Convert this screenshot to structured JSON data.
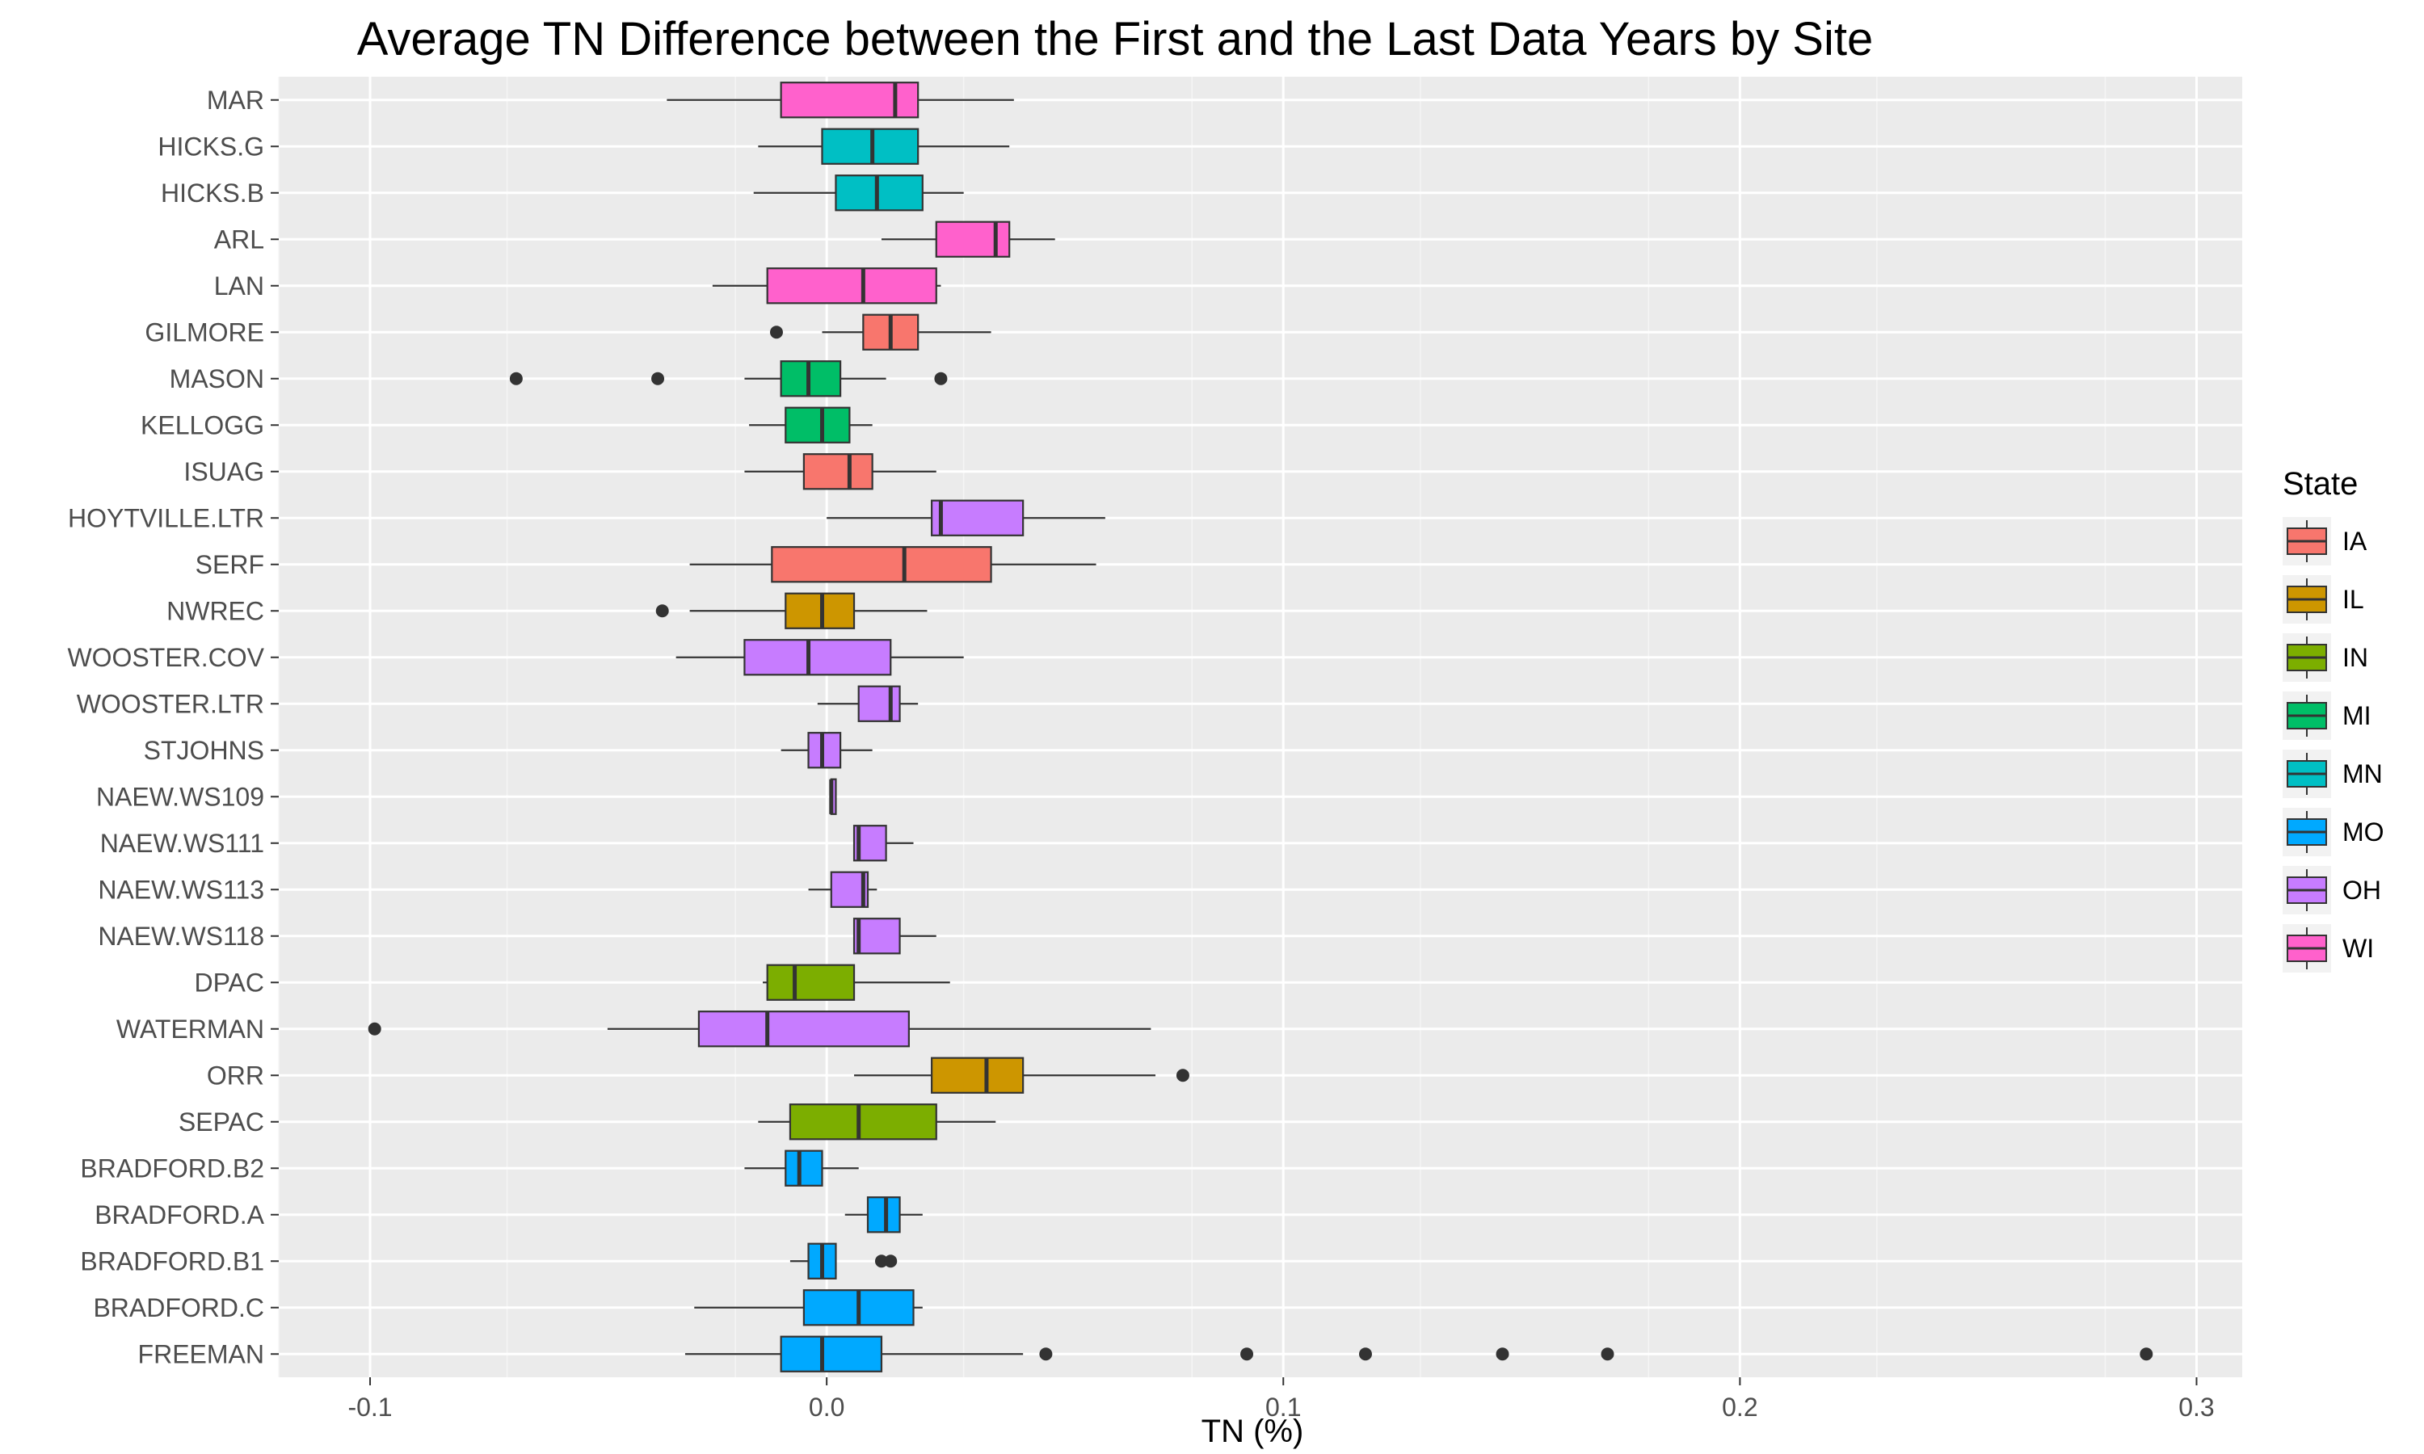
{
  "chart_data": {
    "type": "boxplot",
    "orientation": "horizontal",
    "title": "Average TN Difference between the First and the Last Data Years by Site",
    "xlabel": "TN (%)",
    "ylabel": "",
    "xlim": [
      -0.12,
      0.31
    ],
    "xticks": [
      -0.1,
      0.0,
      0.1,
      0.2,
      0.3
    ],
    "xtick_labels": [
      "-0.1",
      "0.0",
      "0.1",
      "0.2",
      "0.3"
    ],
    "grid": true,
    "legend": {
      "title": "State",
      "placement": "right",
      "entries": [
        {
          "label": "IA",
          "color": "#F8766D"
        },
        {
          "label": "IL",
          "color": "#CD9600"
        },
        {
          "label": "IN",
          "color": "#7CAE00"
        },
        {
          "label": "MI",
          "color": "#00BE67"
        },
        {
          "label": "MN",
          "color": "#00BFC4"
        },
        {
          "label": "MO",
          "color": "#00A9FF"
        },
        {
          "label": "OH",
          "color": "#C77CFF"
        },
        {
          "label": "WI",
          "color": "#FF61CC"
        }
      ]
    },
    "boxes": [
      {
        "site": "MAR",
        "state": "WI",
        "whisker_low": -0.035,
        "q1": -0.01,
        "median": 0.015,
        "q3": 0.02,
        "whisker_high": 0.041,
        "outliers": []
      },
      {
        "site": "HICKS.G",
        "state": "MN",
        "whisker_low": -0.015,
        "q1": -0.001,
        "median": 0.01,
        "q3": 0.02,
        "whisker_high": 0.04,
        "outliers": []
      },
      {
        "site": "HICKS.B",
        "state": "MN",
        "whisker_low": -0.016,
        "q1": 0.002,
        "median": 0.011,
        "q3": 0.021,
        "whisker_high": 0.03,
        "outliers": []
      },
      {
        "site": "ARL",
        "state": "WI",
        "whisker_low": 0.012,
        "q1": 0.024,
        "median": 0.037,
        "q3": 0.04,
        "whisker_high": 0.05,
        "outliers": []
      },
      {
        "site": "LAN",
        "state": "WI",
        "whisker_low": -0.025,
        "q1": -0.013,
        "median": 0.008,
        "q3": 0.024,
        "whisker_high": 0.025,
        "outliers": []
      },
      {
        "site": "GILMORE",
        "state": "IA",
        "whisker_low": -0.001,
        "q1": 0.008,
        "median": 0.014,
        "q3": 0.02,
        "whisker_high": 0.036,
        "outliers": [
          -0.011
        ]
      },
      {
        "site": "MASON",
        "state": "MI",
        "whisker_low": -0.018,
        "q1": -0.01,
        "median": -0.004,
        "q3": 0.003,
        "whisker_high": 0.013,
        "outliers": [
          -0.068,
          -0.037,
          0.025
        ]
      },
      {
        "site": "KELLOGG",
        "state": "MI",
        "whisker_low": -0.017,
        "q1": -0.009,
        "median": -0.001,
        "q3": 0.005,
        "whisker_high": 0.01,
        "outliers": []
      },
      {
        "site": "ISUAG",
        "state": "IA",
        "whisker_low": -0.018,
        "q1": -0.005,
        "median": 0.005,
        "q3": 0.01,
        "whisker_high": 0.024,
        "outliers": []
      },
      {
        "site": "HOYTVILLE.LTR",
        "state": "OH",
        "whisker_low": 0.0,
        "q1": 0.023,
        "median": 0.025,
        "q3": 0.043,
        "whisker_high": 0.061,
        "outliers": []
      },
      {
        "site": "SERF",
        "state": "IA",
        "whisker_low": -0.03,
        "q1": -0.012,
        "median": 0.017,
        "q3": 0.036,
        "whisker_high": 0.059,
        "outliers": []
      },
      {
        "site": "NWREC",
        "state": "IL",
        "whisker_low": -0.03,
        "q1": -0.009,
        "median": -0.001,
        "q3": 0.006,
        "whisker_high": 0.022,
        "outliers": [
          -0.036
        ]
      },
      {
        "site": "WOOSTER.COV",
        "state": "OH",
        "whisker_low": -0.033,
        "q1": -0.018,
        "median": -0.004,
        "q3": 0.014,
        "whisker_high": 0.03,
        "outliers": []
      },
      {
        "site": "WOOSTER.LTR",
        "state": "OH",
        "whisker_low": -0.002,
        "q1": 0.007,
        "median": 0.014,
        "q3": 0.016,
        "whisker_high": 0.02,
        "outliers": []
      },
      {
        "site": "STJOHNS",
        "state": "OH",
        "whisker_low": -0.01,
        "q1": -0.004,
        "median": -0.001,
        "q3": 0.003,
        "whisker_high": 0.01,
        "outliers": []
      },
      {
        "site": "NAEW.WS109",
        "state": "OH",
        "whisker_low": 0.001,
        "q1": 0.001,
        "median": 0.001,
        "q3": 0.002,
        "whisker_high": 0.002,
        "outliers": []
      },
      {
        "site": "NAEW.WS111",
        "state": "OH",
        "whisker_low": 0.006,
        "q1": 0.006,
        "median": 0.007,
        "q3": 0.013,
        "whisker_high": 0.019,
        "outliers": []
      },
      {
        "site": "NAEW.WS113",
        "state": "OH",
        "whisker_low": -0.004,
        "q1": 0.001,
        "median": 0.008,
        "q3": 0.009,
        "whisker_high": 0.011,
        "outliers": []
      },
      {
        "site": "NAEW.WS118",
        "state": "OH",
        "whisker_low": 0.006,
        "q1": 0.006,
        "median": 0.007,
        "q3": 0.016,
        "whisker_high": 0.024,
        "outliers": []
      },
      {
        "site": "DPAC",
        "state": "IN",
        "whisker_low": -0.014,
        "q1": -0.013,
        "median": -0.007,
        "q3": 0.006,
        "whisker_high": 0.027,
        "outliers": []
      },
      {
        "site": "WATERMAN",
        "state": "OH",
        "whisker_low": -0.048,
        "q1": -0.028,
        "median": -0.013,
        "q3": 0.018,
        "whisker_high": 0.071,
        "outliers": [
          -0.099
        ]
      },
      {
        "site": "ORR",
        "state": "IL",
        "whisker_low": 0.006,
        "q1": 0.023,
        "median": 0.035,
        "q3": 0.043,
        "whisker_high": 0.072,
        "outliers": [
          0.078
        ]
      },
      {
        "site": "SEPAC",
        "state": "IN",
        "whisker_low": -0.015,
        "q1": -0.008,
        "median": 0.007,
        "q3": 0.024,
        "whisker_high": 0.037,
        "outliers": []
      },
      {
        "site": "BRADFORD.B2",
        "state": "MO",
        "whisker_low": -0.018,
        "q1": -0.009,
        "median": -0.006,
        "q3": -0.001,
        "whisker_high": 0.007,
        "outliers": []
      },
      {
        "site": "BRADFORD.A",
        "state": "MO",
        "whisker_low": 0.004,
        "q1": 0.009,
        "median": 0.013,
        "q3": 0.016,
        "whisker_high": 0.021,
        "outliers": []
      },
      {
        "site": "BRADFORD.B1",
        "state": "MO",
        "whisker_low": -0.008,
        "q1": -0.004,
        "median": -0.001,
        "q3": 0.002,
        "whisker_high": 0.002,
        "outliers": [
          0.012,
          0.014
        ]
      },
      {
        "site": "BRADFORD.C",
        "state": "MO",
        "whisker_low": -0.029,
        "q1": -0.005,
        "median": 0.007,
        "q3": 0.019,
        "whisker_high": 0.021,
        "outliers": []
      },
      {
        "site": "FREEMAN",
        "state": "MO",
        "whisker_low": -0.031,
        "q1": -0.01,
        "median": -0.001,
        "q3": 0.012,
        "whisker_high": 0.043,
        "outliers": [
          0.048,
          0.092,
          0.118,
          0.148,
          0.171,
          0.289
        ]
      }
    ]
  }
}
